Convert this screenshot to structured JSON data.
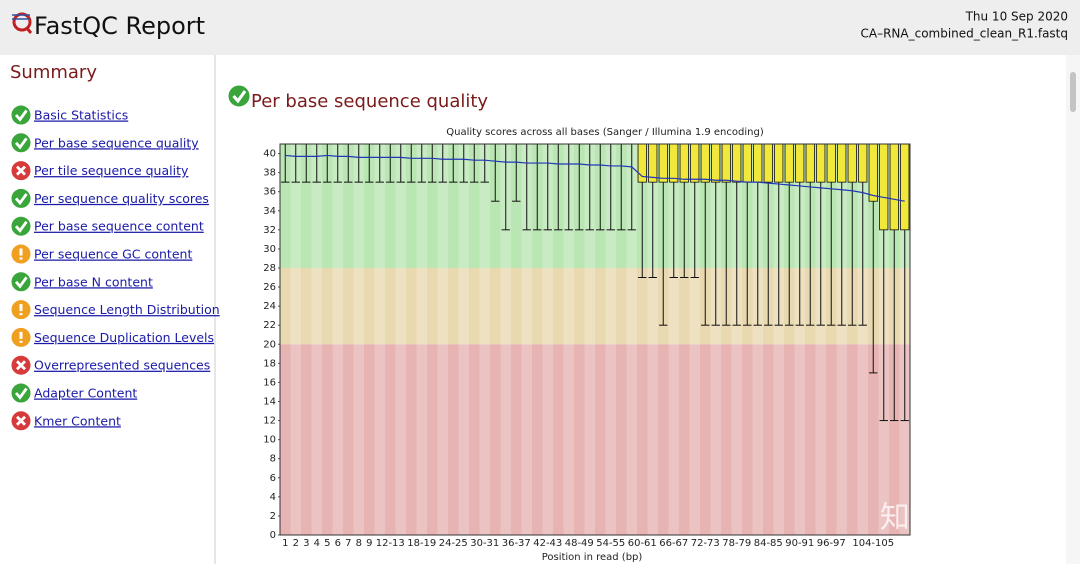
{
  "header": {
    "title": "FastQC Report",
    "date": "Thu 10 Sep 2020",
    "file": "CA–RNA_combined_clean_R1.fastq"
  },
  "summary": {
    "title": "Summary",
    "modules": [
      {
        "label": "Basic Statistics",
        "status": "pass"
      },
      {
        "label": "Per base sequence quality",
        "status": "pass"
      },
      {
        "label": "Per tile sequence quality",
        "status": "fail"
      },
      {
        "label": "Per sequence quality scores",
        "status": "pass"
      },
      {
        "label": "Per base sequence content",
        "status": "pass"
      },
      {
        "label": "Per sequence GC content",
        "status": "warn"
      },
      {
        "label": "Per base N content",
        "status": "pass"
      },
      {
        "label": "Sequence Length Distribution",
        "status": "warn"
      },
      {
        "label": "Sequence Duplication Levels",
        "status": "warn"
      },
      {
        "label": "Overrepresented sequences",
        "status": "fail"
      },
      {
        "label": "Adapter Content",
        "status": "pass"
      },
      {
        "label": "Kmer Content",
        "status": "fail"
      }
    ]
  },
  "section": {
    "title": "Per base sequence quality",
    "status": "pass"
  },
  "watermark": "知乎 @Jade",
  "chart_data": {
    "type": "boxplot",
    "title": "Quality scores across all bases (Sanger / Illumina 1.9 encoding)",
    "xlabel": "Position in read (bp)",
    "categories": [
      "1",
      "2",
      "3",
      "4",
      "5",
      "6",
      "7",
      "8",
      "9",
      null,
      "12-13",
      null,
      null,
      "18-19",
      null,
      null,
      "24-25",
      null,
      null,
      "30-31",
      null,
      null,
      "36-37",
      null,
      null,
      "42-43",
      null,
      null,
      "48-49",
      null,
      null,
      "54-55",
      null,
      null,
      "60-61",
      null,
      null,
      "66-67",
      null,
      null,
      "72-73",
      null,
      null,
      "78-79",
      null,
      null,
      "84-85",
      null,
      null,
      "90-91",
      null,
      null,
      "96-97",
      null,
      null,
      null,
      "104-105",
      null,
      null,
      null
    ],
    "low": [
      37,
      37,
      37,
      37,
      37,
      37,
      37,
      37,
      37,
      37,
      37,
      37,
      37,
      37,
      37,
      37,
      37,
      37,
      37,
      37,
      35,
      32,
      35,
      32,
      32,
      32,
      32,
      32,
      32,
      32,
      32,
      32,
      32,
      32,
      27,
      27,
      22,
      27,
      27,
      27,
      22,
      22,
      22,
      22,
      22,
      22,
      22,
      22,
      22,
      22,
      22,
      22,
      22,
      22,
      22,
      22,
      17,
      12,
      12,
      12
    ],
    "q1": [
      41,
      41,
      41,
      41,
      41,
      41,
      41,
      41,
      41,
      41,
      41,
      41,
      41,
      41,
      41,
      41,
      41,
      41,
      41,
      41,
      41,
      41,
      41,
      41,
      41,
      41,
      41,
      41,
      41,
      41,
      41,
      41,
      41,
      41,
      37,
      37,
      37,
      37,
      37,
      37,
      37,
      37,
      37,
      37,
      37,
      37,
      37,
      37,
      37,
      37,
      37,
      37,
      37,
      37,
      37,
      37,
      35,
      32,
      32,
      32
    ],
    "median": [
      41,
      41,
      41,
      41,
      41,
      41,
      41,
      41,
      41,
      41,
      41,
      41,
      41,
      41,
      41,
      41,
      41,
      41,
      41,
      41,
      41,
      41,
      41,
      41,
      41,
      41,
      41,
      41,
      41,
      41,
      41,
      41,
      41,
      41,
      41,
      41,
      41,
      41,
      41,
      41,
      41,
      41,
      41,
      41,
      41,
      41,
      41,
      41,
      41,
      41,
      41,
      41,
      41,
      41,
      41,
      41,
      41,
      41,
      41,
      41
    ],
    "q3": [
      41,
      41,
      41,
      41,
      41,
      41,
      41,
      41,
      41,
      41,
      41,
      41,
      41,
      41,
      41,
      41,
      41,
      41,
      41,
      41,
      41,
      41,
      41,
      41,
      41,
      41,
      41,
      41,
      41,
      41,
      41,
      41,
      41,
      41,
      41,
      41,
      41,
      41,
      41,
      41,
      41,
      41,
      41,
      41,
      41,
      41,
      41,
      41,
      41,
      41,
      41,
      41,
      41,
      41,
      41,
      41,
      41,
      41,
      41,
      41
    ],
    "high": [
      41,
      41,
      41,
      41,
      41,
      41,
      41,
      41,
      41,
      41,
      41,
      41,
      41,
      41,
      41,
      41,
      41,
      41,
      41,
      41,
      41,
      41,
      41,
      41,
      41,
      41,
      41,
      41,
      41,
      41,
      41,
      41,
      41,
      41,
      41,
      41,
      41,
      41,
      41,
      41,
      41,
      41,
      41,
      41,
      41,
      41,
      41,
      41,
      41,
      41,
      41,
      41,
      41,
      41,
      41,
      41,
      41,
      41,
      41,
      41
    ],
    "mean": {
      "color": "#2236b8",
      "values": [
        39.8,
        39.7,
        39.7,
        39.7,
        39.8,
        39.7,
        39.7,
        39.6,
        39.6,
        39.6,
        39.6,
        39.6,
        39.5,
        39.5,
        39.5,
        39.4,
        39.4,
        39.4,
        39.3,
        39.3,
        39.2,
        39.1,
        39.1,
        39.0,
        39.0,
        39.0,
        38.9,
        38.9,
        38.9,
        38.8,
        38.8,
        38.7,
        38.7,
        38.6,
        37.6,
        37.5,
        37.4,
        37.4,
        37.3,
        37.3,
        37.3,
        37.2,
        37.2,
        37.1,
        37.0,
        37.0,
        36.9,
        36.8,
        36.7,
        36.6,
        36.5,
        36.4,
        36.3,
        36.2,
        36.1,
        35.9,
        35.6,
        35.4,
        35.2,
        35.0
      ]
    },
    "box_color": "#f2e83c",
    "median_color": "#d01818",
    "zones": [
      {
        "from": 28,
        "to": 41,
        "color": "#b9e6b2"
      },
      {
        "from": 20,
        "to": 28,
        "color": "#e9d9b0"
      },
      {
        "from": 0,
        "to": 20,
        "color": "#e7b3b3"
      }
    ],
    "ylim": [
      0,
      41
    ],
    "yticks": [
      0,
      2,
      4,
      6,
      8,
      10,
      12,
      14,
      16,
      18,
      20,
      22,
      24,
      26,
      28,
      30,
      32,
      34,
      36,
      38,
      40
    ]
  }
}
